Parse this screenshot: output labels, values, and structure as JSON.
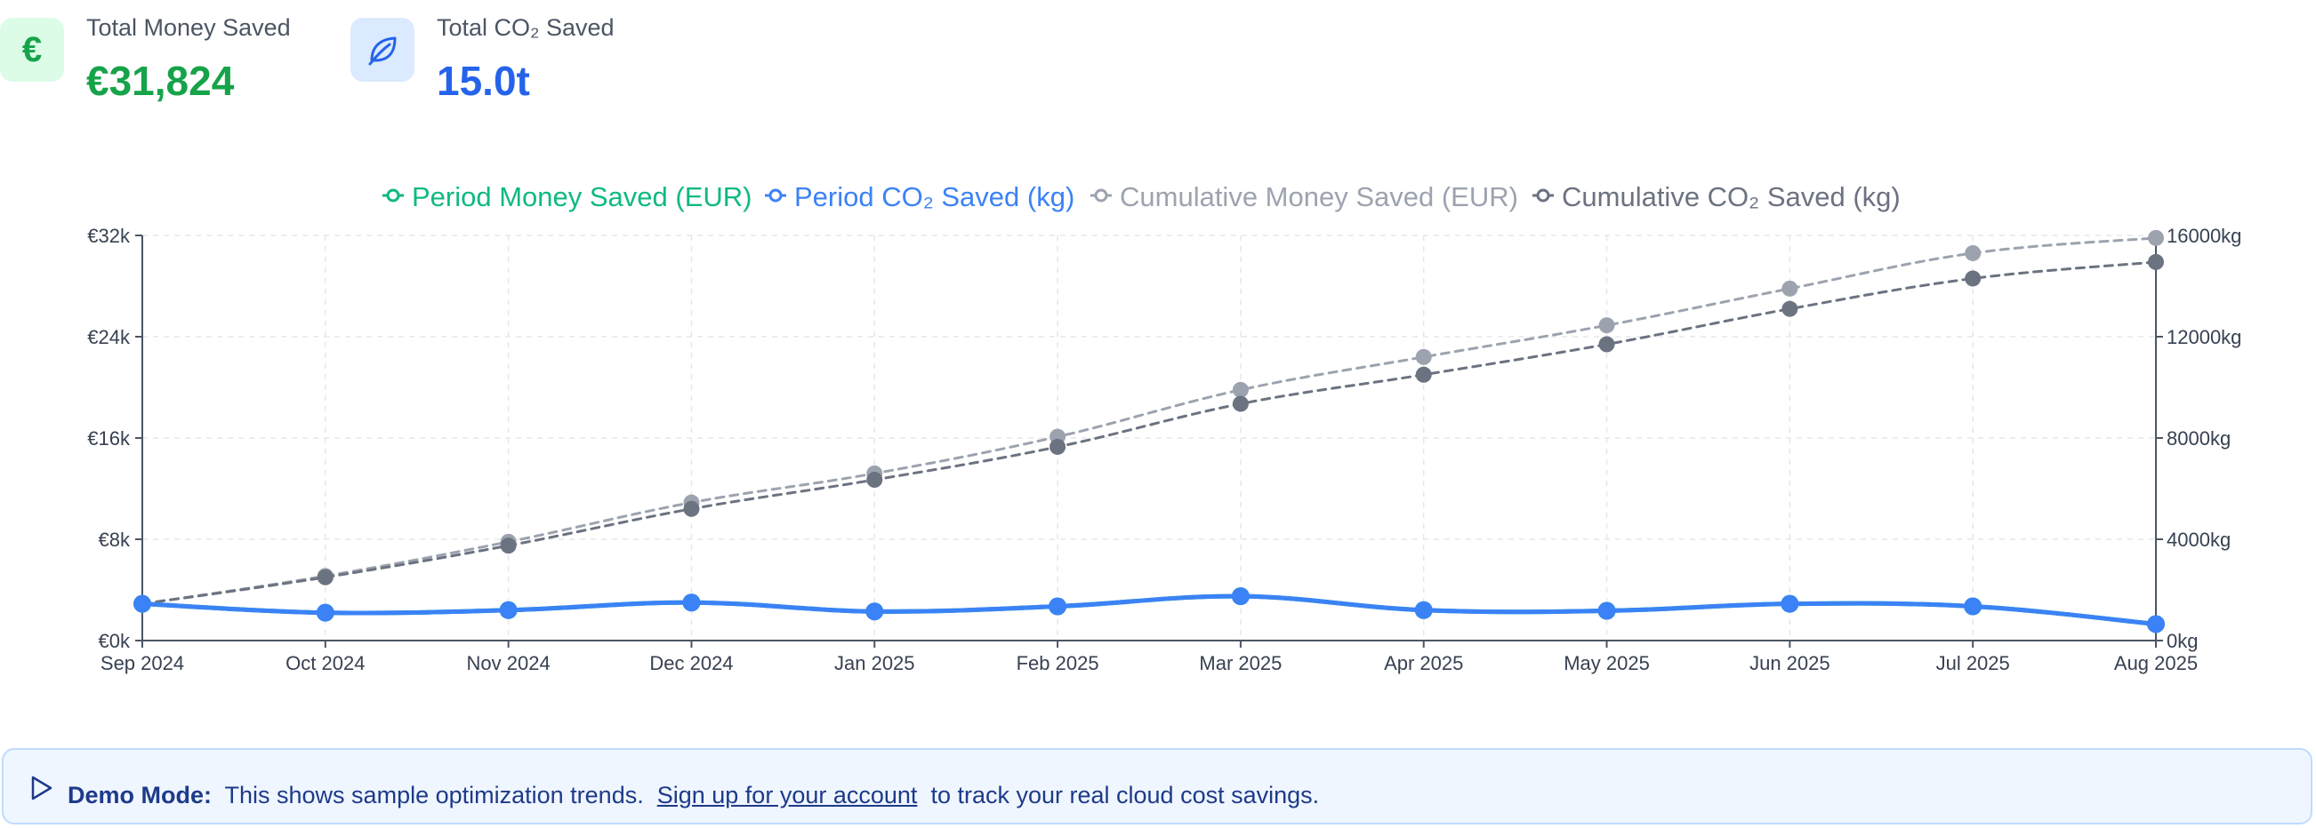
{
  "stats": {
    "money": {
      "label": "Total Money Saved",
      "value": "€31,824",
      "icon": "euro-icon"
    },
    "co2": {
      "label": "Total CO₂ Saved",
      "value": "15.0t",
      "icon": "leaf-icon"
    }
  },
  "banner": {
    "title": "Demo Mode:",
    "text": "This shows sample optimization trends.",
    "link": "Sign up for your account",
    "suffix": "to track your real cloud cost savings.",
    "icon": "play-icon"
  },
  "chart_data": {
    "type": "line",
    "x": [
      "Sep 2024",
      "Oct 2024",
      "Nov 2024",
      "Dec 2024",
      "Jan 2025",
      "Feb 2025",
      "Mar 2025",
      "Apr 2025",
      "May 2025",
      "Jun 2025",
      "Jul 2025",
      "Aug 2025"
    ],
    "y_left": {
      "range": [
        0,
        32000
      ],
      "ticks": [
        "€0k",
        "€8k",
        "€16k",
        "€24k",
        "€32k"
      ]
    },
    "y_right": {
      "range": [
        0,
        16000
      ],
      "ticks": [
        "0kg",
        "4000kg",
        "8000kg",
        "12000kg",
        "16000kg"
      ]
    },
    "grid": true,
    "legend_position": "top-center",
    "series": [
      {
        "name": "Period Money Saved (EUR)",
        "axis": "left",
        "color": "#10b981",
        "style": "solid",
        "values": [
          2900,
          2200,
          2400,
          3000,
          2300,
          2700,
          3500,
          2400,
          2350,
          2900,
          2700,
          1300
        ]
      },
      {
        "name": "Period CO₂ Saved (kg)",
        "axis": "right",
        "color": "#3b82f6",
        "style": "solid",
        "values": [
          1450,
          1100,
          1200,
          1500,
          1150,
          1350,
          1750,
          1200,
          1175,
          1450,
          1350,
          650
        ]
      },
      {
        "name": "Cumulative Money Saved (EUR)",
        "axis": "left",
        "color": "#9ca3af",
        "style": "dashed",
        "values": [
          2900,
          5100,
          7800,
          10900,
          13200,
          16100,
          19800,
          22400,
          24900,
          27800,
          30600,
          31800
        ]
      },
      {
        "name": "Cumulative CO₂ Saved (kg)",
        "axis": "right",
        "color": "#6b7280",
        "style": "dashed",
        "values": [
          1450,
          2500,
          3750,
          5200,
          6350,
          7650,
          9350,
          10500,
          11700,
          13100,
          14300,
          14950
        ]
      }
    ]
  }
}
